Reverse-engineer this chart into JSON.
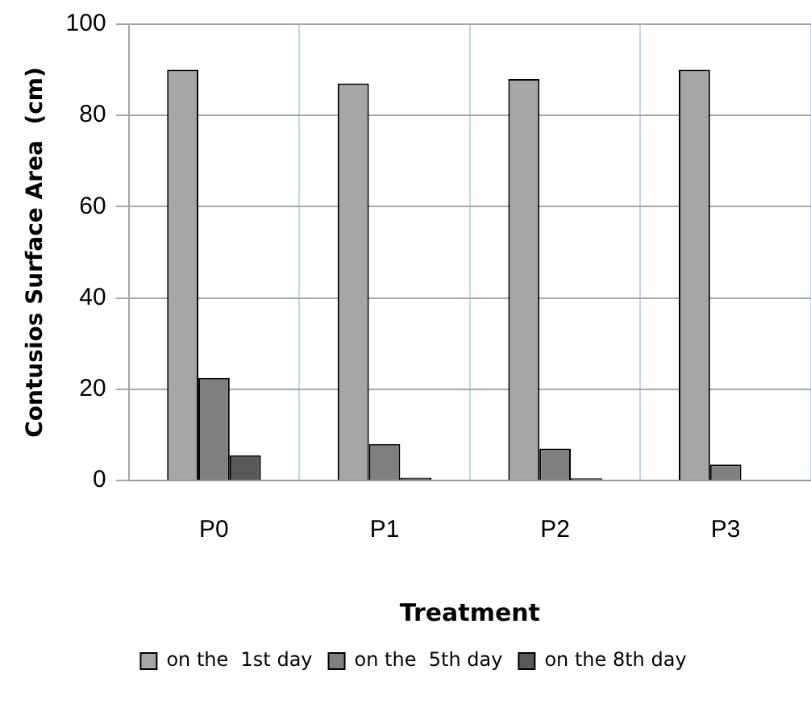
{
  "chart_data": {
    "type": "bar",
    "xlabel": "Treatment",
    "ylabel": "Contusios Surface Area  (cm)",
    "categories": [
      "P0",
      "P1",
      "P2",
      "P3"
    ],
    "series": [
      {
        "name": "on the  1st day",
        "color": "#a6a6a6",
        "values": [
          90,
          87,
          88,
          90
        ]
      },
      {
        "name": "on the  5th day",
        "color": "#7f7f7f",
        "values": [
          22.5,
          8,
          7,
          3.5
        ]
      },
      {
        "name": "on the 8th day",
        "color": "#595959",
        "values": [
          5.5,
          0.6,
          0.5,
          null
        ]
      }
    ],
    "ylim": [
      0,
      100
    ],
    "yticks": [
      0,
      20,
      40,
      60,
      80,
      100
    ],
    "grid": true,
    "legend": "bottom"
  }
}
